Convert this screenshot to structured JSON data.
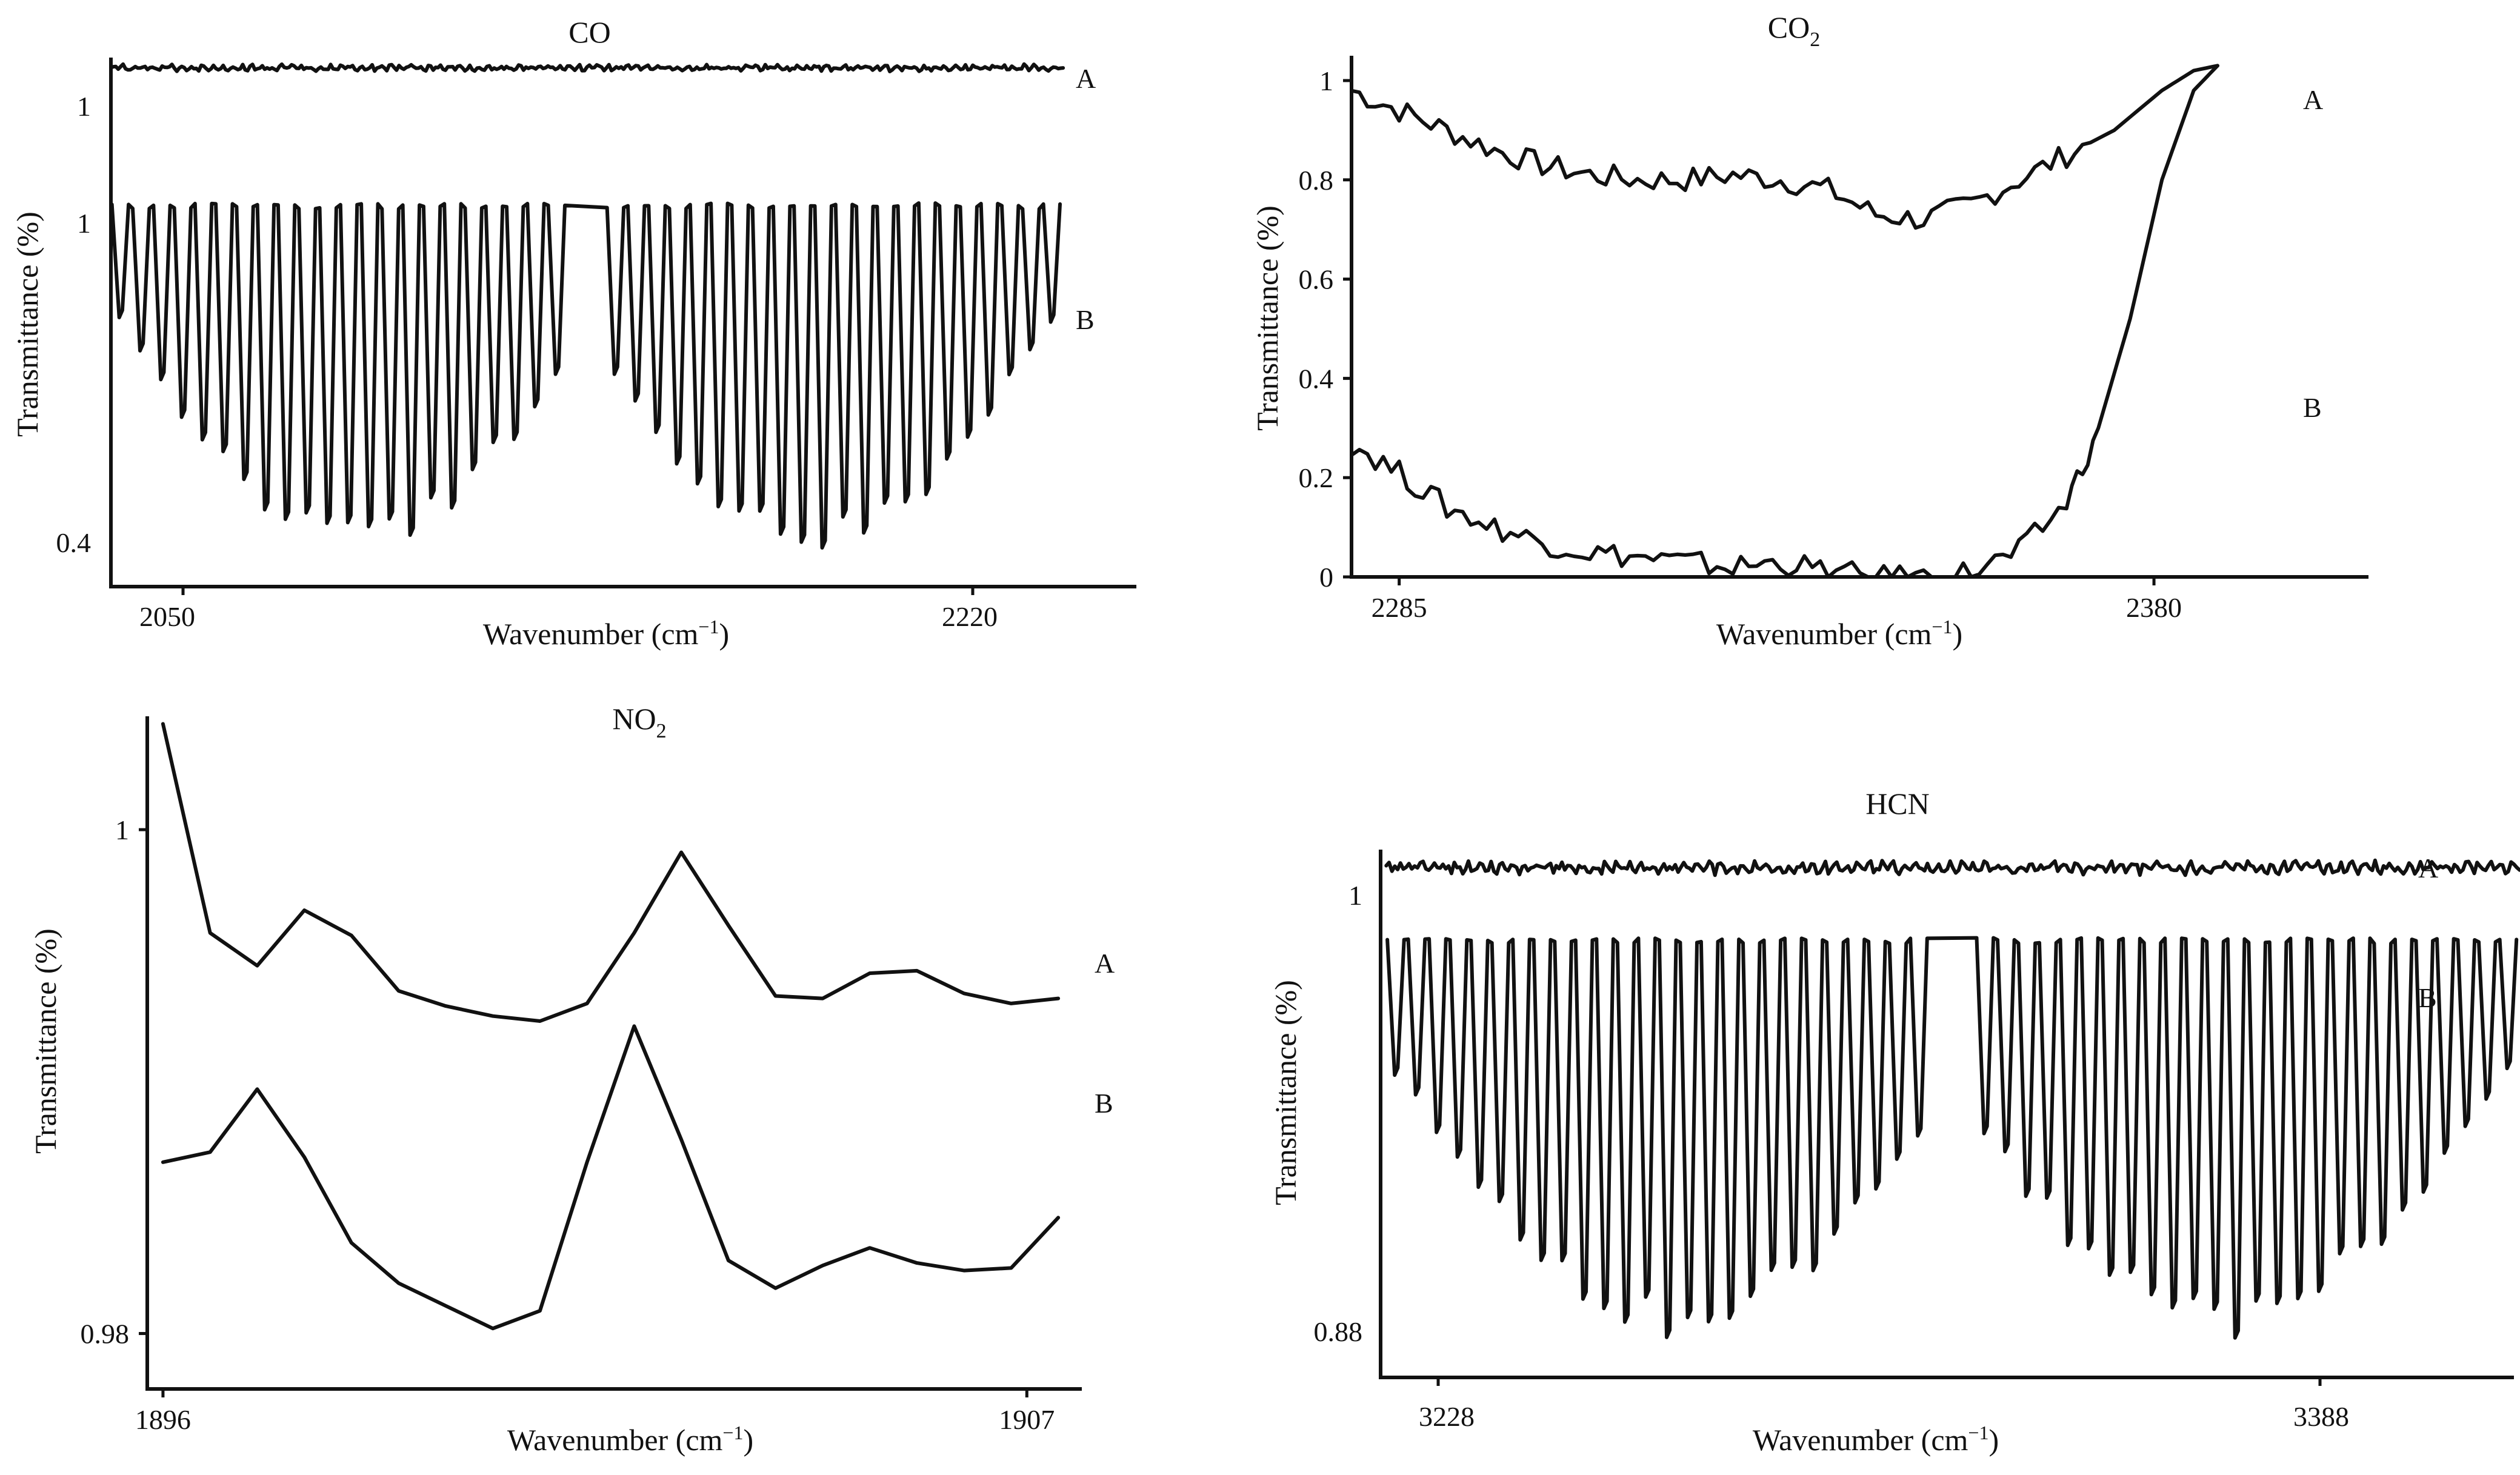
{
  "chart_data": [
    {
      "type": "line",
      "title": "CO",
      "title_sub": "",
      "xlabel": "Wavenumber (cm",
      "xlabel_sup": "−1",
      "xlabel_end": ")",
      "ylabel": "Transmittance (%)",
      "xlim": [
        2040,
        2250
      ],
      "x_ticks": [
        {
          "value": 2050,
          "label": "2050"
        },
        {
          "value": 2220,
          "label": "2220"
        }
      ],
      "series_ticks": [
        {
          "series": "A",
          "position": 1,
          "label": "1"
        },
        {
          "series": "B",
          "position": 1,
          "label": "1"
        },
        {
          "series": "B",
          "position": 0.4,
          "label": "0.4"
        }
      ],
      "series": [
        {
          "name": "A",
          "pattern": "flat_noise",
          "x_start": 2040,
          "x_end": 2235,
          "top": 1.0,
          "bottom": 1.0,
          "depth_min": 0,
          "depth_max": 0,
          "n_dips": 0
        },
        {
          "name": "B",
          "pattern": "rovib_doublet",
          "x_start": 2040,
          "x_end": 2235,
          "top": 1.0,
          "bottom": 0.4,
          "band_center": 2143,
          "depth_min": 0.78,
          "depth_max": 0.4,
          "n_dips": 44
        }
      ]
    },
    {
      "type": "line",
      "title": "CO",
      "title_sub": "2",
      "xlabel": "Wavenumber (cm",
      "xlabel_sup": "−1",
      "xlabel_end": ")",
      "ylabel": "Transmittance (%)",
      "xlim": [
        2279,
        2407
      ],
      "ylim": [
        0,
        1.05
      ],
      "x_ticks": [
        {
          "value": 2285,
          "label": "2285"
        },
        {
          "value": 2380,
          "label": "2380"
        }
      ],
      "y_ticks": [
        {
          "value": 0,
          "label": "0"
        },
        {
          "value": 0.2,
          "label": "0.2"
        },
        {
          "value": 0.4,
          "label": "0.4"
        },
        {
          "value": 0.6,
          "label": "0.6"
        },
        {
          "value": 0.8,
          "label": "0.8"
        },
        {
          "value": 1,
          "label": "1"
        }
      ],
      "series": [
        {
          "name": "A",
          "x": [
            2279,
            2285,
            2291,
            2297,
            2303,
            2309,
            2315,
            2321,
            2327,
            2333,
            2339,
            2345,
            2351,
            2357,
            2363,
            2369,
            2375,
            2381,
            2385,
            2388
          ],
          "y": [
            0.98,
            0.94,
            0.9,
            0.86,
            0.83,
            0.81,
            0.8,
            0.8,
            0.81,
            0.8,
            0.78,
            0.73,
            0.72,
            0.75,
            0.8,
            0.85,
            0.9,
            0.98,
            1.02,
            1.03
          ]
        },
        {
          "name": "B",
          "x": [
            2279,
            2285,
            2291,
            2297,
            2303,
            2309,
            2315,
            2321,
            2327,
            2333,
            2339,
            2345,
            2351,
            2357,
            2363,
            2369,
            2373,
            2377,
            2381,
            2385,
            2388
          ],
          "y": [
            0.27,
            0.21,
            0.14,
            0.1,
            0.07,
            0.05,
            0.04,
            0.03,
            0.02,
            0.03,
            0.01,
            0.0,
            0.0,
            0.01,
            0.05,
            0.15,
            0.3,
            0.52,
            0.8,
            0.98,
            1.03
          ]
        }
      ]
    },
    {
      "type": "line",
      "title": "NO",
      "title_sub": "2",
      "xlabel": "Wavenumber (cm",
      "xlabel_sup": "−1",
      "xlabel_end": ")",
      "ylabel": "Transmittance (%)",
      "xlim": [
        1895.8,
        1907.7
      ],
      "ylim": [
        0.9778,
        1.0045
      ],
      "x_ticks": [
        {
          "value": 1896,
          "label": "1896"
        },
        {
          "value": 1907,
          "label": "1907"
        }
      ],
      "y_ticks": [
        {
          "value": 0.98,
          "label": "0.98"
        },
        {
          "value": 1,
          "label": "1"
        }
      ],
      "series": [
        {
          "name": "A",
          "x": [
            1896,
            1896.6,
            1897.2,
            1897.8,
            1898.4,
            1899,
            1899.6,
            1900.2,
            1900.8,
            1901.4,
            1902,
            1902.6,
            1903.2,
            1903.8,
            1904.4,
            1905,
            1905.6,
            1906.2,
            1906.8,
            1907.4
          ],
          "y": [
            1.0042,
            0.9959,
            0.9946,
            0.9968,
            0.9958,
            0.9936,
            0.993,
            0.9926,
            0.9924,
            0.9931,
            0.9959,
            0.9991,
            0.9962,
            0.9934,
            0.9933,
            0.9943,
            0.9944,
            0.9935,
            0.9931,
            0.9933
          ]
        },
        {
          "name": "B",
          "x": [
            1896,
            1896.6,
            1897.2,
            1897.8,
            1898.4,
            1899,
            1899.6,
            1900.2,
            1900.8,
            1901.4,
            1902,
            1902.6,
            1903.2,
            1903.8,
            1904.4,
            1905,
            1905.6,
            1906.2,
            1906.8,
            1907.4
          ],
          "y": [
            0.9868,
            0.9872,
            0.9897,
            0.987,
            0.9836,
            0.982,
            0.9811,
            0.9802,
            0.9809,
            0.9868,
            0.9922,
            0.9877,
            0.9829,
            0.9818,
            0.9827,
            0.9834,
            0.9828,
            0.9825,
            0.9826,
            0.9846
          ]
        }
      ]
    },
    {
      "type": "line",
      "title": "HCN",
      "title_sub": "",
      "xlabel": "Wavenumber (cm",
      "xlabel_sup": "−1",
      "xlabel_end": ")",
      "ylabel": "Transmittance (%)",
      "xlim": [
        3225,
        3425
      ],
      "x_ticks": [
        {
          "value": 3228,
          "label": "3228"
        },
        {
          "value": 3388,
          "label": "3388"
        }
      ],
      "series_ticks": [
        {
          "series": "A",
          "position": 1,
          "label": "1"
        },
        {
          "series": "B",
          "position": 0.88,
          "label": "0.88"
        }
      ],
      "series": [
        {
          "name": "A",
          "pattern": "flat_noise",
          "x_start": 3226,
          "x_end": 3426,
          "top": 1.0,
          "bottom": 1.0,
          "depth_min": 0,
          "depth_max": 0,
          "n_dips": 0
        },
        {
          "name": "B",
          "pattern": "rovib_doublet",
          "x_start": 3226,
          "x_end": 3426,
          "top": 1.0,
          "bottom": 0.88,
          "band_center": 3311,
          "depth_min": 0.93,
          "depth_max": 0.88,
          "n_dips": 52
        }
      ]
    }
  ]
}
